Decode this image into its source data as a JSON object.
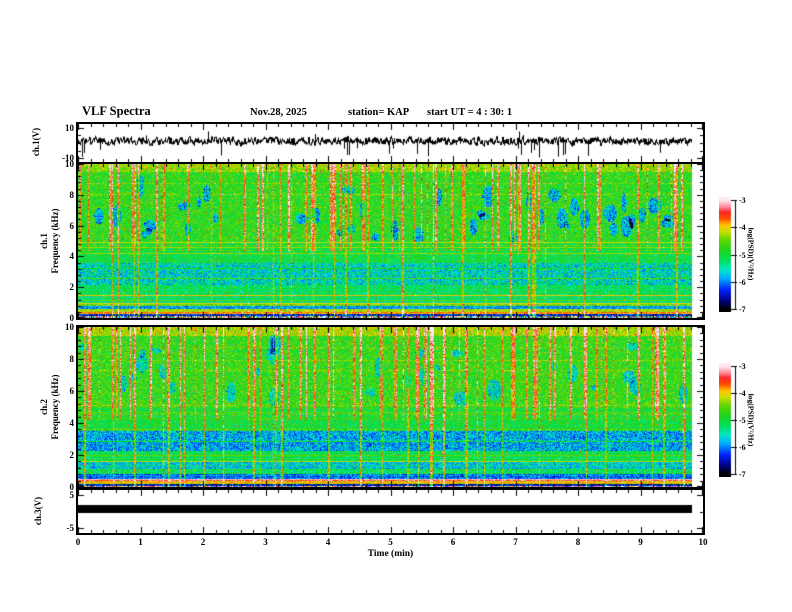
{
  "header": {
    "title": "VLF Spectra",
    "date": "Nov.28, 2025",
    "station": "station= KAP",
    "start_ut": "start UT =  4 : 30: 1"
  },
  "axes": {
    "time": {
      "label": "Time (min)",
      "min": 0,
      "max": 10,
      "tick_labels": [
        "0",
        "1",
        "2",
        "3",
        "4",
        "5",
        "6",
        "7",
        "8",
        "9",
        "10"
      ],
      "minor_step": 0.2
    }
  },
  "panels": {
    "ch1_wave": {
      "label": "ch.1(V)",
      "tick_labels": [
        "10",
        "-10"
      ]
    },
    "ch1_spec": {
      "label_channel": "ch.1",
      "label_freq": "Frequency (kHz)",
      "tick_labels": [
        "10",
        "8",
        "6",
        "4",
        "2",
        "0"
      ]
    },
    "ch2_spec": {
      "label_channel": "ch.2",
      "label_freq": "Frequency (kHz)",
      "tick_labels": [
        "10",
        "8",
        "6",
        "4",
        "2",
        "0"
      ]
    },
    "ch3_wave": {
      "label": "ch.3(V)",
      "tick_labels": [
        "5",
        "-5"
      ]
    }
  },
  "colorbar": {
    "label": "log(PSD)(V²/Hz)",
    "tick_labels": [
      "-3",
      "-4",
      "-5",
      "-6",
      "-7"
    ],
    "range": [
      -7,
      -3
    ]
  },
  "colormap": {
    "stops": [
      [
        0.0,
        "#000000"
      ],
      [
        0.075,
        "#000082"
      ],
      [
        0.175,
        "#0022ff"
      ],
      [
        0.28,
        "#00aaff"
      ],
      [
        0.36,
        "#00e8c8"
      ],
      [
        0.44,
        "#00e060"
      ],
      [
        0.54,
        "#1ed41e"
      ],
      [
        0.64,
        "#66d600"
      ],
      [
        0.71,
        "#c6e000"
      ],
      [
        0.77,
        "#ffc400"
      ],
      [
        0.83,
        "#ff5000"
      ],
      [
        0.89,
        "#ff2626"
      ],
      [
        0.94,
        "#ff8ca0"
      ],
      [
        1.0,
        "#ffeaf2"
      ]
    ]
  },
  "chart_data": [
    {
      "type": "line",
      "name": "ch1-waveform",
      "ylabel": "ch.1(V)",
      "xlim": [
        0,
        10
      ],
      "ylim": [
        -10,
        10
      ],
      "yticks": [
        10,
        -10
      ],
      "data_end_min": 9.83,
      "description": "Dense noisy broadband voltage trace, mean near +1 V, fluctuations of a few volts, frequent narrow negative spikes reaching -10 V over the full 10 minutes.",
      "gen": {
        "seed": 3,
        "baseline": 1.1,
        "smooth": 0.5,
        "amp": 4.4,
        "spike_down_prob": 0.03,
        "spike_up_prob": 0.012
      }
    },
    {
      "type": "heatmap",
      "name": "ch1-spectrogram",
      "ylabel": "ch.1 Frequency (kHz)",
      "xlim": [
        0,
        10
      ],
      "ylim": [
        0,
        10
      ],
      "yticks": [
        0,
        2,
        4,
        6,
        8,
        10
      ],
      "zlabel": "log(PSD)(V²/Hz)",
      "zlim": [
        -7,
        -3
      ],
      "data_end_min": 9.83,
      "seed": 11,
      "description": "Green broadband background above 5 kHz crossed by many vertical red impulsive streaks (sferics) and dark-blue patches; cyan/blue speckled band 2.2-3.6 kHz; yellow horizontal power-line lines near 4.2-5 kHz; bright yellow/orange bands below 1 kHz; dark bottom edge with multicolor speckle.",
      "bands": [
        [
          9.5,
          10,
          -4.35,
          0.45
        ],
        [
          5,
          9.5,
          -4.8,
          0.5
        ],
        [
          3.6,
          5,
          -5.05,
          0.45
        ],
        [
          2.15,
          3.6,
          -5.55,
          0.6
        ],
        [
          1.55,
          2.15,
          -5.15,
          0.45
        ],
        [
          1,
          1.55,
          -5.35,
          0.45
        ],
        [
          0.8,
          1,
          -4.45,
          0.35
        ],
        [
          0.6,
          0.8,
          -5.9,
          0.4
        ],
        [
          0.42,
          0.6,
          -4.25,
          0.3
        ],
        [
          0.28,
          0.42,
          -3.9,
          0.25
        ],
        [
          0.14,
          0.28,
          -6.4,
          0.5
        ],
        [
          0,
          0.14,
          -6.8,
          0.4
        ]
      ],
      "hlines": [
        [
          4.95,
          -4.15
        ],
        [
          4.6,
          -4.3
        ],
        [
          4.22,
          -4.3
        ],
        [
          3.25,
          -4.9
        ],
        [
          2.6,
          -4.55
        ],
        [
          1.5,
          -3.95
        ],
        [
          1.15,
          -4.5
        ],
        [
          0.95,
          -4.05
        ]
      ],
      "streaks": {
        "count": 95,
        "boost_min": 0.9,
        "boost_max": 1.7,
        "f_lo": 4.4,
        "full_prob": 0.35
      },
      "patches": {
        "count": 42,
        "f_lo": 5.2,
        "f_hi": 8.6,
        "delta": -1.35
      },
      "row_texture": {
        "prob": 0.1,
        "boost_max": 0.45
      },
      "bottom_speckle": {
        "f_max": 0.13,
        "colors": [
          "#ff3020",
          "#2040ff",
          "#ffe020",
          "#ffffff",
          "#00c8ff",
          "#208020"
        ]
      }
    },
    {
      "type": "heatmap",
      "name": "ch2-spectrogram",
      "ylabel": "ch.2 Frequency (kHz)",
      "xlim": [
        0,
        10
      ],
      "ylim": [
        0,
        10
      ],
      "yticks": [
        0,
        2,
        4,
        6,
        8,
        10
      ],
      "zlabel": "log(PSD)(V²/Hz)",
      "zlim": [
        -7,
        -3
      ],
      "data_end_min": 9.83,
      "seed": 23,
      "description": "Similar to ch.1: green background with vertical red sferic streaks, stronger blue speckled band 2.3-3.5 kHz, darker band near 1.2 kHz, bright white/red narrow line near 0.5 kHz, dark multicolor speckle at the bottom edge.",
      "bands": [
        [
          9.5,
          10,
          -4.25,
          0.45
        ],
        [
          5,
          9.5,
          -4.75,
          0.5
        ],
        [
          3.55,
          5,
          -5.0,
          0.45
        ],
        [
          2.3,
          3.55,
          -5.85,
          0.55
        ],
        [
          1.6,
          2.3,
          -5.1,
          0.45
        ],
        [
          1.15,
          1.6,
          -5.7,
          0.5
        ],
        [
          0.85,
          1.15,
          -5.2,
          0.45
        ],
        [
          0.55,
          0.85,
          -6.1,
          0.5
        ],
        [
          0.42,
          0.55,
          -3.4,
          0.3
        ],
        [
          0.25,
          0.42,
          -4.1,
          0.4
        ],
        [
          0.12,
          0.25,
          -6.5,
          0.5
        ],
        [
          0,
          0.12,
          -6.8,
          0.4
        ]
      ],
      "hlines": [
        [
          4.7,
          -4.45
        ],
        [
          4.3,
          -4.6
        ],
        [
          2.9,
          -5.0
        ],
        [
          2.0,
          -4.5
        ],
        [
          1.62,
          -4.2
        ],
        [
          0.48,
          -3.15
        ],
        [
          0.3,
          -3.9
        ]
      ],
      "streaks": {
        "count": 88,
        "boost_min": 0.9,
        "boost_max": 1.7,
        "f_lo": 4.2,
        "full_prob": 0.4
      },
      "patches": {
        "count": 30,
        "f_lo": 5.5,
        "f_hi": 9.0,
        "delta": -1.1
      },
      "row_texture": {
        "prob": 0.1,
        "boost_max": 0.45
      },
      "bottom_speckle": {
        "f_max": 0.12,
        "colors": [
          "#ff3020",
          "#2040ff",
          "#ffe020",
          "#ffffff",
          "#00c8ff",
          "#ff70c0"
        ]
      }
    },
    {
      "type": "bar",
      "name": "ch3-output",
      "ylabel": "ch.3(V)",
      "xlim": [
        0,
        10
      ],
      "ylim": [
        -5,
        5
      ],
      "yticks": [
        5,
        -5
      ],
      "data_end_min": 9.83,
      "description": "Constant thick black horizontal band spanning 0 to ~9.83 min, centered just above 0 V (about -0.4 V to +2 V).",
      "bar": {
        "x_start": 0,
        "x_end": 9.83,
        "v_top": 2.0,
        "v_bottom": -0.4
      }
    }
  ]
}
